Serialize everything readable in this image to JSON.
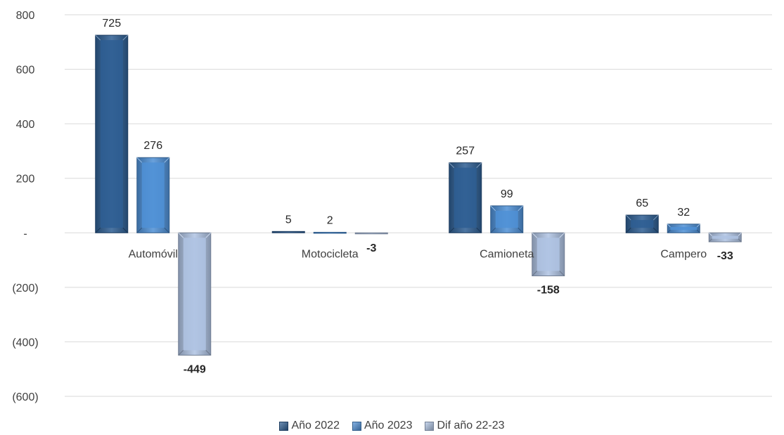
{
  "chart_data": {
    "type": "bar",
    "categories": [
      "Automóvil",
      "Motocicleta",
      "Camioneta",
      "Campero"
    ],
    "series": [
      {
        "name": "Año 2022",
        "values": [
          725,
          5,
          257,
          65
        ],
        "labels": [
          "725",
          "5",
          "257",
          "65"
        ],
        "color": "#2E5E93",
        "bold": false
      },
      {
        "name": "Año 2023",
        "values": [
          276,
          2,
          99,
          32
        ],
        "labels": [
          "276",
          "2",
          "99",
          "32"
        ],
        "color": "#4F90D6",
        "bold": false
      },
      {
        "name": "Dif año 22-23",
        "values": [
          -449,
          -3,
          -158,
          -33
        ],
        "labels": [
          "-449",
          "-3",
          "-158",
          "-33"
        ],
        "color": "#AFC3E3",
        "bold": true
      }
    ],
    "ylim": [
      -600,
      800
    ],
    "yticks": [
      {
        "value": 800,
        "label": "800"
      },
      {
        "value": 600,
        "label": "600"
      },
      {
        "value": 400,
        "label": "400"
      },
      {
        "value": 200,
        "label": "200"
      },
      {
        "value": 0,
        "label": "-"
      },
      {
        "value": -200,
        "label": "(200)"
      },
      {
        "value": -400,
        "label": "(400)"
      },
      {
        "value": -600,
        "label": "(600)"
      }
    ],
    "grid": true,
    "legend_position": "bottom"
  }
}
